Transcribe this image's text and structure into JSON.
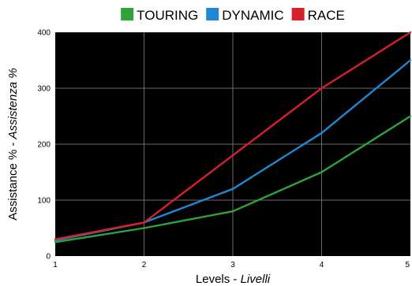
{
  "chart_data": {
    "type": "line",
    "x": [
      1,
      2,
      3,
      4,
      5
    ],
    "series": [
      {
        "name": "TOURING",
        "color": "#2fa23a",
        "values": [
          25,
          50,
          80,
          150,
          250
        ]
      },
      {
        "name": "DYNAMIC",
        "color": "#1e88d2",
        "values": [
          28,
          60,
          120,
          220,
          350
        ]
      },
      {
        "name": "RACE",
        "color": "#d6202a",
        "values": [
          30,
          60,
          180,
          300,
          400
        ]
      }
    ],
    "title": "",
    "xlabel_main": "Levels - ",
    "xlabel_italic": "Livelli",
    "ylabel_main": "Assistance % - ",
    "ylabel_italic": "Assistenza %",
    "xlim": [
      1,
      5
    ],
    "ylim": [
      0,
      400
    ],
    "xticks": [
      "1",
      "2",
      "3",
      "4",
      "5"
    ],
    "yticks": [
      0,
      100,
      200,
      300,
      400
    ],
    "grid": true,
    "plot_background": "#000000",
    "grid_color": "#6b6b6b",
    "legend_position": "top-center"
  }
}
